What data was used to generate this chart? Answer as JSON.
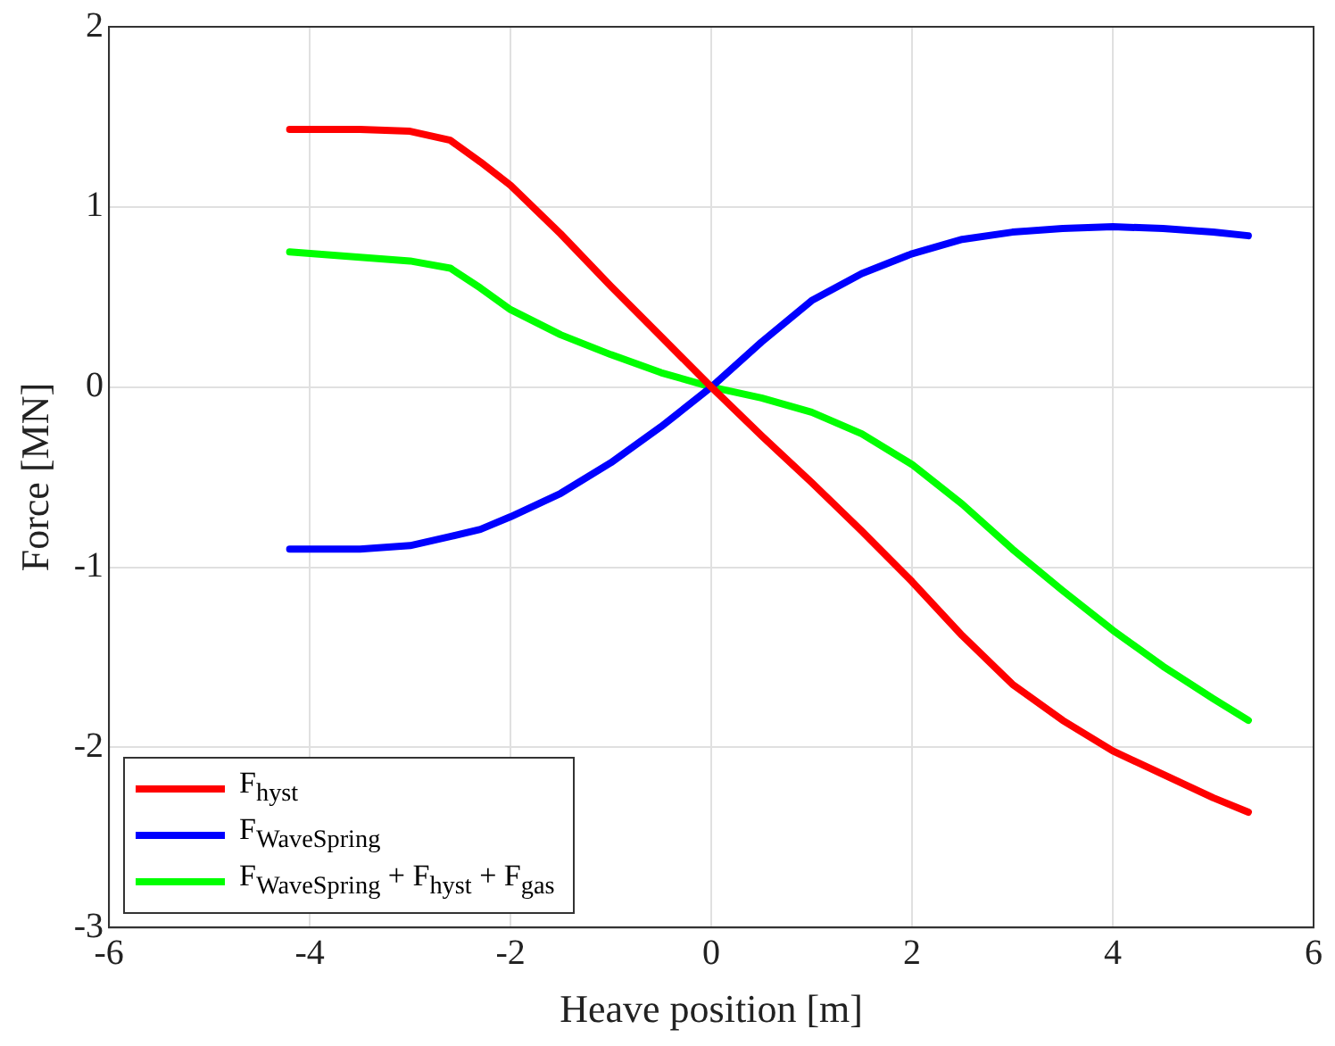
{
  "chart_data": {
    "type": "line",
    "xlabel": "Heave position [m]",
    "ylabel": "Force [MN]",
    "xlim": [
      -6,
      6
    ],
    "xticks": [
      -6,
      -4,
      -2,
      0,
      2,
      4,
      6
    ],
    "ylim": [
      -3,
      2
    ],
    "yticks": [
      -3,
      -2,
      -1,
      0,
      1,
      2
    ],
    "grid": true,
    "legend": "bottom left",
    "marker": "none",
    "line_style": "solid",
    "x": [
      -4.2,
      -3.5,
      -3,
      -2.6,
      -2.3,
      -2,
      -1.5,
      -1,
      -0.5,
      0,
      0.5,
      1,
      1.5,
      2,
      2.5,
      3,
      3.5,
      4,
      4.5,
      5,
      5.35
    ],
    "series": [
      {
        "name": "F$_{hyst}$",
        "color": "#ff0000",
        "values": [
          1.43,
          1.43,
          1.42,
          1.37,
          1.25,
          1.12,
          0.85,
          0.56,
          0.28,
          0,
          -0.27,
          -0.53,
          -0.8,
          -1.08,
          -1.38,
          -1.65,
          -1.85,
          -2.02,
          -2.15,
          -2.28,
          -2.36
        ]
      },
      {
        "name": "F$_{WaveSpring}$",
        "color": "#0000ff",
        "values": [
          -0.9,
          -0.9,
          -0.88,
          -0.83,
          -0.79,
          -0.72,
          -0.59,
          -0.42,
          -0.22,
          0,
          0.25,
          0.48,
          0.63,
          0.74,
          0.82,
          0.86,
          0.88,
          0.89,
          0.88,
          0.86,
          0.84
        ]
      },
      {
        "name": "F$_{WaveSpring}$ + F$_{hyst}$ + F$_{gas}$",
        "color": "#00ff00",
        "values": [
          0.75,
          0.72,
          0.7,
          0.66,
          0.55,
          0.43,
          0.29,
          0.18,
          0.08,
          0,
          -0.06,
          -0.14,
          -0.26,
          -0.43,
          -0.65,
          -0.9,
          -1.13,
          -1.35,
          -1.55,
          -1.73,
          -1.85
        ]
      }
    ]
  }
}
